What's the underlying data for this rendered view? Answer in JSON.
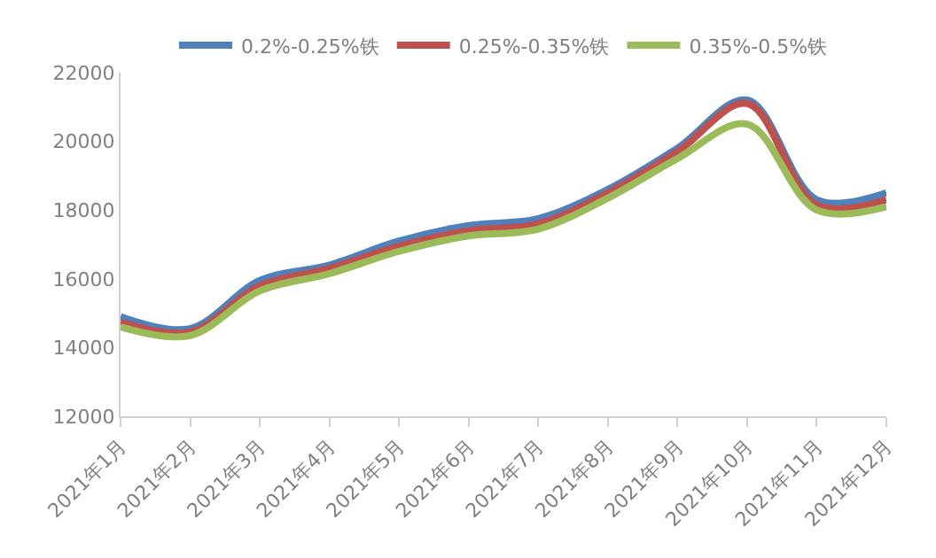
{
  "chart_data": {
    "type": "line",
    "categories": [
      "2021年1月",
      "2021年2月",
      "2021年3月",
      "2021年4月",
      "2021年5月",
      "2021年6月",
      "2021年7月",
      "2021年8月",
      "2021年9月",
      "2021年10月",
      "2021年11月",
      "2021年12月"
    ],
    "series": [
      {
        "name": "0.2%-0.25%铁",
        "color": "#4f81bd",
        "values": [
          14900,
          14550,
          15950,
          16400,
          17100,
          17550,
          17750,
          18600,
          19800,
          21200,
          18300,
          18500
        ]
      },
      {
        "name": "0.25%-0.35%铁",
        "color": "#c0504d",
        "values": [
          14750,
          14450,
          15800,
          16300,
          16950,
          17400,
          17600,
          18500,
          19700,
          21100,
          18150,
          18300
        ]
      },
      {
        "name": "0.35%-0.5%铁",
        "color": "#9bbb59",
        "values": [
          14600,
          14350,
          15650,
          16150,
          16800,
          17250,
          17450,
          18350,
          19500,
          20500,
          18000,
          18100
        ]
      }
    ],
    "ylim": [
      12000,
      22000
    ],
    "yticks": [
      12000,
      14000,
      16000,
      18000,
      20000,
      22000
    ],
    "grid": false,
    "legend": "top",
    "marker": "none",
    "line_style": "solid"
  }
}
